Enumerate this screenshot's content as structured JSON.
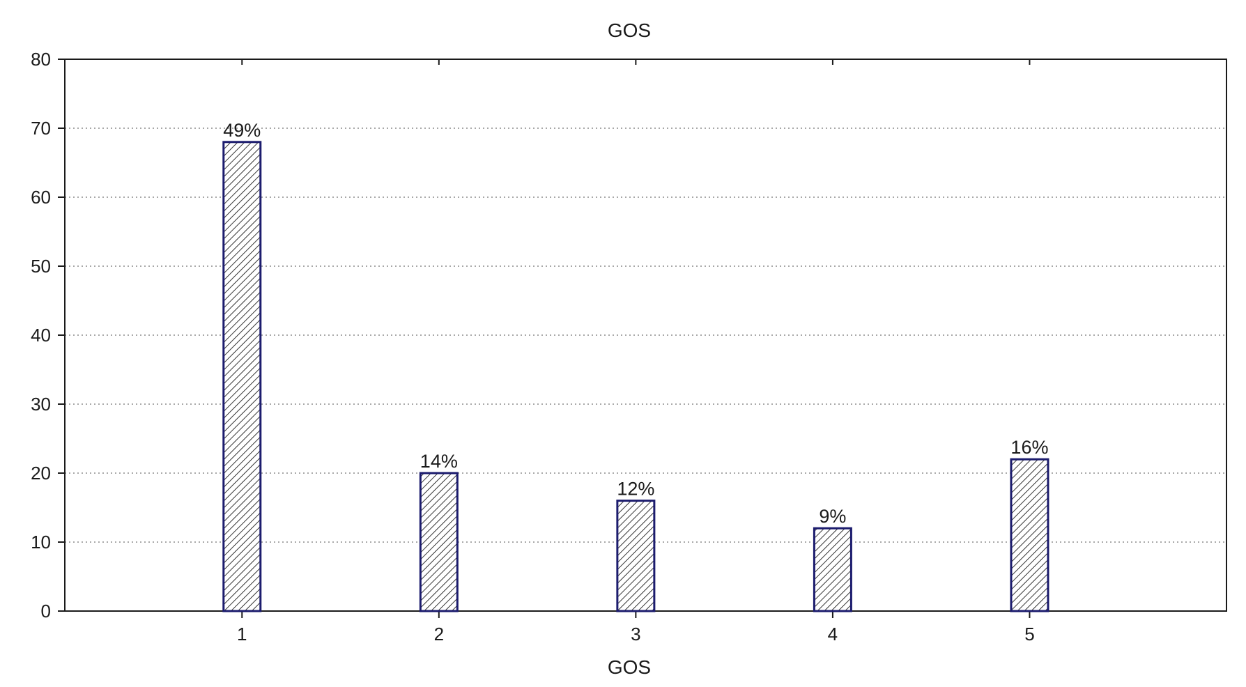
{
  "chart_data": {
    "type": "bar",
    "title": "GOS",
    "xlabel": "GOS",
    "ylabel": "",
    "categories": [
      "1",
      "2",
      "3",
      "4",
      "5"
    ],
    "values": [
      68,
      20,
      16,
      12,
      22
    ],
    "data_labels": [
      "49%",
      "14%",
      "12%",
      "9%",
      "16%"
    ],
    "ylim": [
      0,
      80
    ],
    "yticks": [
      "0",
      "10",
      "20",
      "30",
      "40",
      "50",
      "60",
      "70",
      "80"
    ],
    "xlim": [
      0.1,
      6.0
    ],
    "grid": "horizontal dotted",
    "legend": "none",
    "bar_fill": "diagonal hatch",
    "bar_edge_color": "#1c1c6e",
    "hatch_color": "#333333",
    "grid_color": "#8c8c8c"
  }
}
